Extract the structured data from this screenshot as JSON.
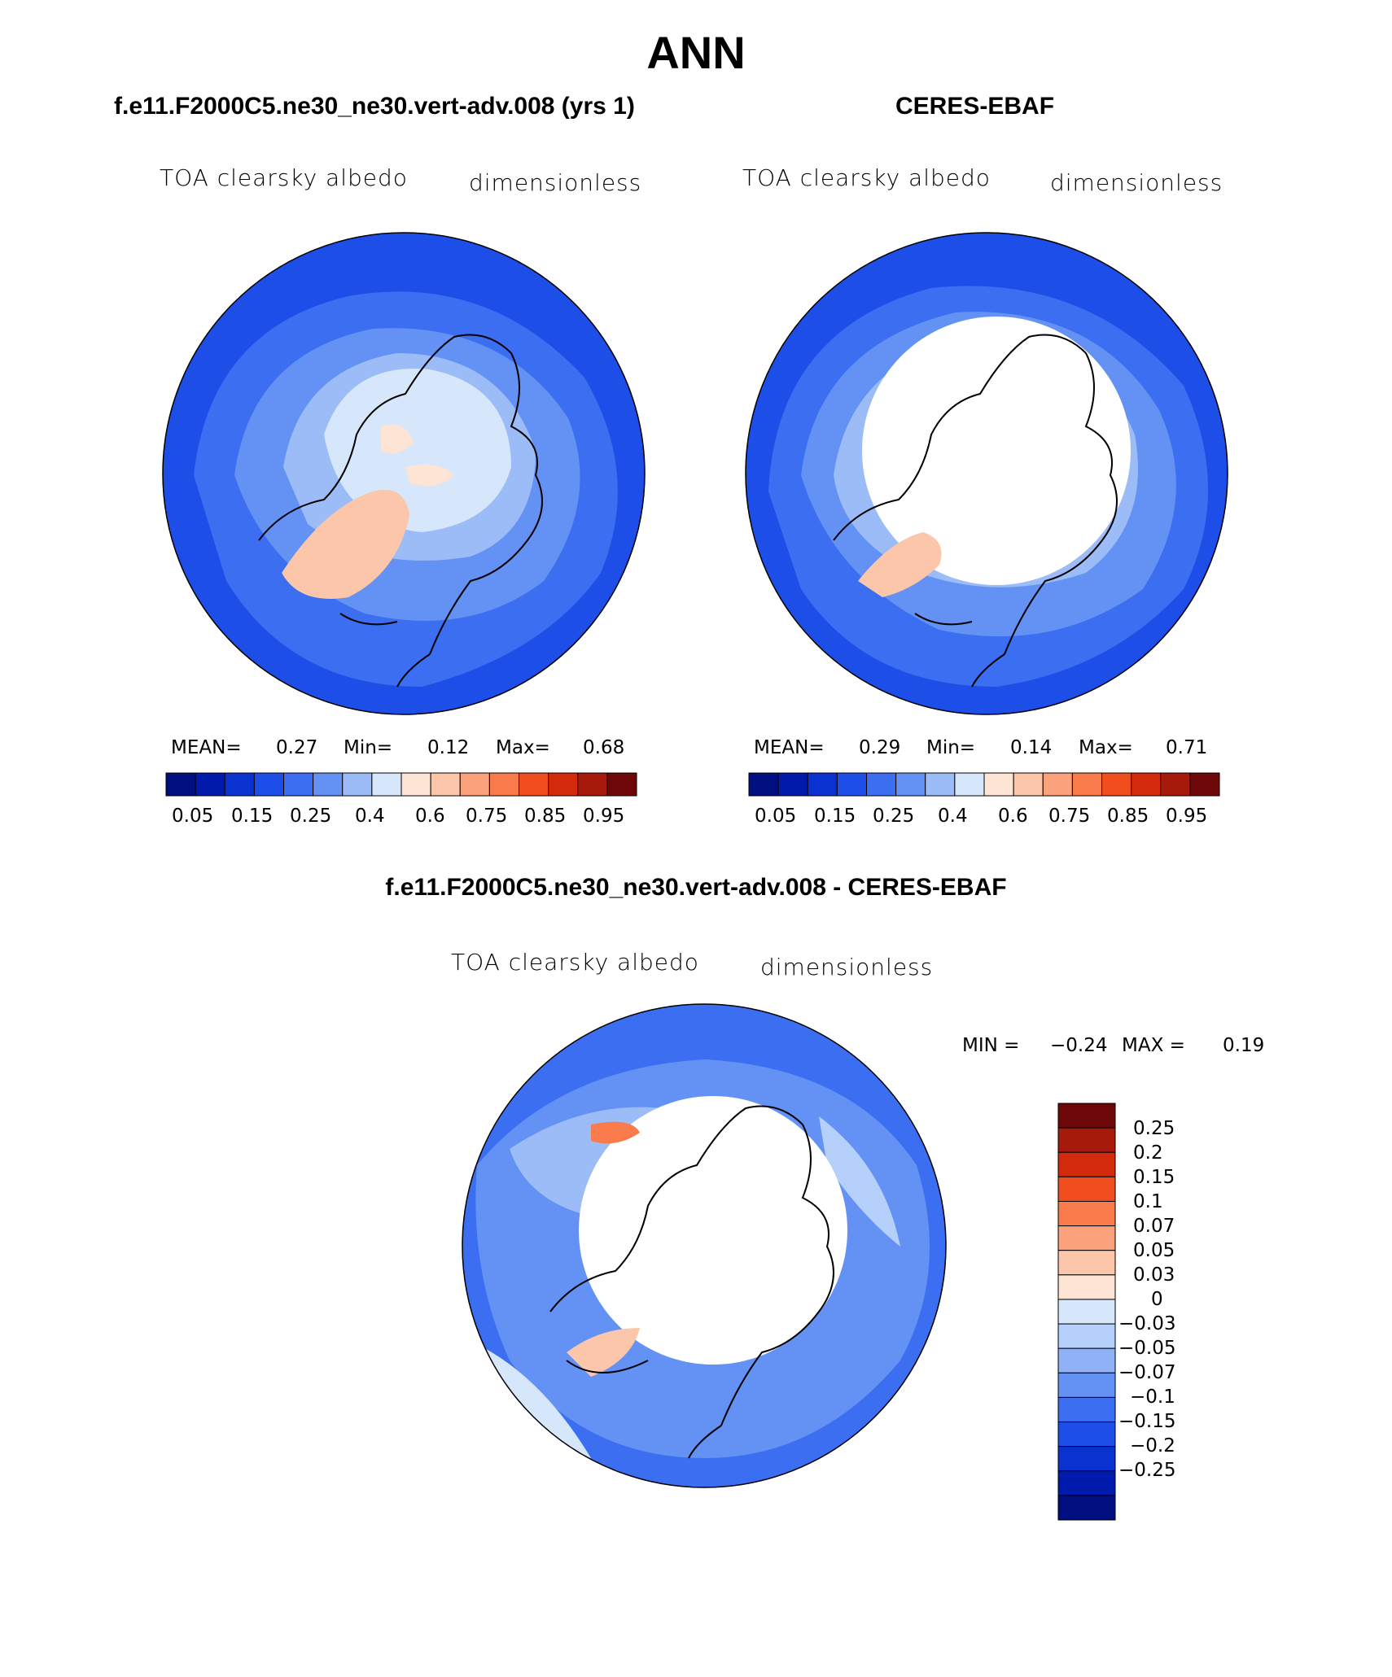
{
  "main_title": "ANN",
  "panels": [
    {
      "title": "f.e11.F2000C5.ne30_ne30.vert-adv.008 (yrs 1)",
      "variable": "TOA clearsky albedo",
      "units": "dimensionless",
      "stats": {
        "mean_label": "MEAN=",
        "mean": "0.27",
        "min_label": "Min=",
        "min": "0.12",
        "max_label": "Max=",
        "max": "0.68"
      }
    },
    {
      "title": "CERES-EBAF",
      "variable": "TOA clearsky albedo",
      "units": "dimensionless",
      "stats": {
        "mean_label": "MEAN=",
        "mean": "0.29",
        "min_label": "Min=",
        "min": "0.14",
        "max_label": "Max=",
        "max": "0.71"
      }
    },
    {
      "title": "f.e11.F2000C5.ne30_ne30.vert-adv.008 - CERES-EBAF",
      "variable": "TOA clearsky albedo",
      "units": "dimensionless",
      "stats": {
        "min_label": "MIN =",
        "min": "−0.24",
        "max_label": "MAX =",
        "max": "0.19"
      }
    }
  ],
  "colorbar_horizontal": {
    "colors": [
      "#000e7f",
      "#001bab",
      "#0a32d1",
      "#1d4fe8",
      "#3b6ef0",
      "#6392f4",
      "#9cbcf7",
      "#d6e6fb",
      "#fde4d4",
      "#fcc6ab",
      "#fba27c",
      "#f97a4a",
      "#f04e1e",
      "#d42a0c",
      "#a51a0a",
      "#6e0707"
    ],
    "labels": [
      "0.05",
      "0.15",
      "0.25",
      "0.4",
      "0.6",
      "0.75",
      "0.85",
      "0.95"
    ]
  },
  "colorbar_vertical": {
    "colors_top_to_bottom": [
      "#6e0707",
      "#a51a0a",
      "#d42a0c",
      "#f04e1e",
      "#f97a4a",
      "#fba27c",
      "#fcc6ab",
      "#fde4d4",
      "#d6e6fb",
      "#b5d0fa",
      "#8fb2f6",
      "#6392f4",
      "#3b6ef0",
      "#1d4fe8",
      "#0a32d1",
      "#001bab",
      "#000e7f"
    ],
    "labels_top_to_bottom": [
      "0.25",
      "0.2",
      "0.15",
      "0.1",
      "0.07",
      "0.05",
      "0.03",
      "0",
      "−0.03",
      "−0.05",
      "−0.07",
      "−0.1",
      "−0.15",
      "−0.2",
      "−0.25"
    ]
  },
  "chart_data": [
    {
      "type": "heatmap",
      "projection": "north polar stereographic",
      "title": "f.e11.F2000C5.ne30_ne30.vert-adv.008 (yrs 1)",
      "variable": "TOA clearsky albedo",
      "units": "dimensionless",
      "mean": 0.27,
      "min": 0.12,
      "max": 0.68,
      "contour_levels": [
        0.05,
        0.1,
        0.15,
        0.2,
        0.25,
        0.3,
        0.35,
        0.4,
        0.5,
        0.6,
        0.7,
        0.75,
        0.8,
        0.85,
        0.9,
        0.95
      ]
    },
    {
      "type": "heatmap",
      "projection": "north polar stereographic",
      "title": "CERES-EBAF",
      "variable": "TOA clearsky albedo",
      "units": "dimensionless",
      "mean": 0.29,
      "min": 0.14,
      "max": 0.71,
      "contour_levels": [
        0.05,
        0.1,
        0.15,
        0.2,
        0.25,
        0.3,
        0.35,
        0.4,
        0.5,
        0.6,
        0.7,
        0.75,
        0.8,
        0.85,
        0.9,
        0.95
      ]
    },
    {
      "type": "heatmap",
      "projection": "north polar stereographic",
      "title": "f.e11.F2000C5.ne30_ne30.vert-adv.008 - CERES-EBAF",
      "variable": "TOA clearsky albedo",
      "units": "dimensionless",
      "min": -0.24,
      "max": 0.19,
      "contour_levels": [
        -0.25,
        -0.2,
        -0.15,
        -0.1,
        -0.07,
        -0.05,
        -0.03,
        0,
        0.03,
        0.05,
        0.07,
        0.1,
        0.15,
        0.2,
        0.25
      ]
    }
  ]
}
